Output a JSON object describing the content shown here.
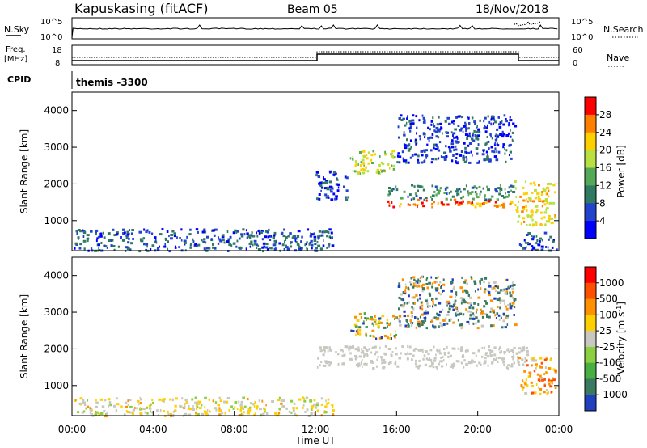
{
  "header": {
    "station": "Kapuskasing (fitACF)",
    "beam": "Beam 05",
    "date": "18/Nov/2018"
  },
  "nsky_panel": {
    "left_label": "N.Sky",
    "right_label": "N.Search",
    "ytick_top": "10^5",
    "ytick_bottom": "10^0"
  },
  "freq_panel": {
    "left_label_1": "Freq.",
    "left_label_2": "[MHz]",
    "right_label": "Nave",
    "ytick_left_top": "18",
    "ytick_left_bottom": "8",
    "ytick_right_top": "60",
    "ytick_right_bottom": "0"
  },
  "cpid": {
    "label": "CPID",
    "value": "themis -3300"
  },
  "chart_data": [
    {
      "type": "heatmap",
      "title": "Power",
      "ylabel": "Slant Range [km]",
      "xlabel": "Time UT",
      "xlim_hours": [
        0,
        24
      ],
      "ylim": [
        180,
        4500
      ],
      "y_ticks": [
        "1000",
        "2000",
        "3000",
        "4000"
      ],
      "colorbar": {
        "label": "Power [dB]",
        "ticks": [
          "4",
          "8",
          "12",
          "16",
          "20",
          "24",
          "28"
        ],
        "colors": [
          "#0000ff",
          "#2244cc",
          "#2f7a60",
          "#55a855",
          "#b8e040",
          "#ffd000",
          "#ff8000",
          "#ff0000"
        ],
        "range": [
          0,
          32
        ]
      },
      "regions": [
        {
          "t0": 0.1,
          "t1": 12.9,
          "r0": 200,
          "r1": 800,
          "value": 7
        },
        {
          "t0": 12.0,
          "t1": 13.6,
          "r0": 1600,
          "r1": 2400,
          "value": 5
        },
        {
          "t0": 13.7,
          "t1": 15.9,
          "r0": 2300,
          "r1": 2950,
          "value": 19
        },
        {
          "t0": 15.5,
          "t1": 21.7,
          "r0": 1600,
          "r1": 2000,
          "value": 11
        },
        {
          "t0": 15.5,
          "t1": 21.6,
          "r0": 1400,
          "r1": 1600,
          "value": 27
        },
        {
          "t0": 16.0,
          "t1": 21.8,
          "r0": 2600,
          "r1": 3900,
          "value": 5
        },
        {
          "t0": 21.8,
          "t1": 23.8,
          "r0": 900,
          "r1": 2100,
          "value": 21
        },
        {
          "t0": 22.0,
          "t1": 23.9,
          "r0": 200,
          "r1": 700,
          "value": 6
        }
      ]
    },
    {
      "type": "heatmap",
      "title": "Velocity",
      "ylabel": "Slant Range [km]",
      "xlabel": "Time UT",
      "xlim_hours": [
        0,
        24
      ],
      "ylim": [
        180,
        4500
      ],
      "y_ticks": [
        "1000",
        "2000",
        "3000",
        "4000"
      ],
      "x_ticks": [
        "00:00",
        "04:00",
        "08:00",
        "12:00",
        "16:00",
        "20:00",
        "00:00"
      ],
      "colorbar": {
        "label": "Velocity [m s^-1]",
        "ticks": [
          "1000",
          "500",
          "100",
          "25",
          "-25",
          "-100",
          "-500",
          "-1000"
        ],
        "colors": [
          "#2040c0",
          "#3a7a60",
          "#48b040",
          "#8ad040",
          "#c8c8c0",
          "#ffd000",
          "#ff9000",
          "#ff5000",
          "#ff0000"
        ]
      },
      "regions": [
        {
          "t0": 0.1,
          "t1": 12.9,
          "r0": 200,
          "r1": 700,
          "value": "mixed_ground"
        },
        {
          "t0": 12.0,
          "t1": 22.5,
          "r0": 1500,
          "r1": 2100,
          "value": "near_zero"
        },
        {
          "t0": 13.7,
          "t1": 16.0,
          "r0": 2300,
          "r1": 3000,
          "value": "mixed"
        },
        {
          "t0": 16.0,
          "t1": 21.8,
          "r0": 2600,
          "r1": 4000,
          "value": "positive"
        },
        {
          "t0": 22.0,
          "t1": 23.8,
          "r0": 800,
          "r1": 1800,
          "value": "negative"
        }
      ]
    }
  ]
}
